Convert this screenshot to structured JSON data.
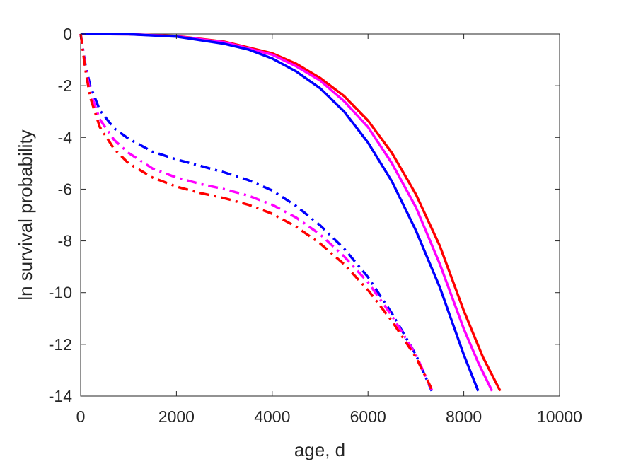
{
  "chart_data": {
    "type": "line",
    "title": "",
    "xlabel": "age, d",
    "ylabel": "ln survival probability",
    "xlim": [
      0,
      10000
    ],
    "ylim": [
      -14,
      0
    ],
    "xticks": [
      0,
      2000,
      4000,
      6000,
      8000,
      10000
    ],
    "yticks": [
      0,
      -2,
      -4,
      -6,
      -8,
      -10,
      -12,
      -14
    ],
    "xtick_labels": [
      "0",
      "2000",
      "4000",
      "6000",
      "8000",
      "10000"
    ],
    "ytick_labels": [
      "0",
      "-2",
      "-4",
      "-6",
      "-8",
      "-10",
      "-12",
      "-14"
    ],
    "grid": false,
    "legend": "none",
    "series": [
      {
        "color": "#ff0000",
        "style": "solid",
        "x": [
          0,
          1000,
          2000,
          3000,
          4000,
          4500,
          5000,
          5500,
          6000,
          6500,
          7000,
          7500,
          8000,
          8400,
          8760
        ],
        "y": [
          0,
          -0.01,
          -0.08,
          -0.3,
          -0.75,
          -1.15,
          -1.7,
          -2.4,
          -3.35,
          -4.6,
          -6.2,
          -8.2,
          -10.7,
          -12.5,
          -13.8
        ]
      },
      {
        "color": "#ff00ff",
        "style": "solid",
        "x": [
          0,
          1000,
          2000,
          3000,
          4000,
          4500,
          5000,
          5500,
          6000,
          6500,
          7000,
          7500,
          8000,
          8300,
          8590
        ],
        "y": [
          0,
          -0.01,
          -0.09,
          -0.32,
          -0.8,
          -1.25,
          -1.8,
          -2.6,
          -3.6,
          -5.0,
          -6.7,
          -8.9,
          -11.4,
          -12.7,
          -13.8
        ]
      },
      {
        "color": "#0000ff",
        "style": "solid",
        "x": [
          0,
          1000,
          2000,
          3000,
          3500,
          4000,
          4500,
          5000,
          5500,
          6000,
          6500,
          7000,
          7500,
          8000,
          8300
        ],
        "y": [
          0,
          -0.01,
          -0.1,
          -0.38,
          -0.6,
          -0.95,
          -1.45,
          -2.1,
          -3.0,
          -4.2,
          -5.7,
          -7.6,
          -9.8,
          -12.4,
          -13.8
        ]
      },
      {
        "color": "#0000ff",
        "style": "dashdot",
        "x": [
          0,
          100,
          200,
          400,
          700,
          1000,
          1500,
          2000,
          2500,
          3000,
          3500,
          4000,
          4500,
          5000,
          5500,
          6000,
          6500,
          7000,
          7330
        ],
        "y": [
          0,
          -1.2,
          -2.0,
          -2.95,
          -3.65,
          -4.05,
          -4.55,
          -4.85,
          -5.1,
          -5.35,
          -5.65,
          -6.05,
          -6.65,
          -7.4,
          -8.3,
          -9.4,
          -10.8,
          -12.4,
          -13.8
        ]
      },
      {
        "color": "#ff00ff",
        "style": "dashdot",
        "x": [
          0,
          100,
          200,
          400,
          700,
          1000,
          1500,
          2000,
          2500,
          3000,
          3500,
          4000,
          4500,
          5000,
          5500,
          6000,
          6500,
          7000,
          7340
        ],
        "y": [
          0,
          -1.3,
          -2.25,
          -3.3,
          -4.1,
          -4.6,
          -5.2,
          -5.55,
          -5.8,
          -6.0,
          -6.25,
          -6.6,
          -7.1,
          -7.75,
          -8.6,
          -9.6,
          -10.9,
          -12.4,
          -13.8
        ]
      },
      {
        "color": "#ff0000",
        "style": "dashdot",
        "x": [
          0,
          100,
          200,
          400,
          700,
          1000,
          1500,
          2000,
          2500,
          3000,
          3500,
          4000,
          4500,
          5000,
          5500,
          6000,
          6500,
          7000,
          7350
        ],
        "y": [
          0,
          -1.4,
          -2.45,
          -3.6,
          -4.45,
          -5.0,
          -5.55,
          -5.9,
          -6.15,
          -6.35,
          -6.6,
          -6.95,
          -7.45,
          -8.1,
          -8.9,
          -9.9,
          -11.1,
          -12.5,
          -13.8
        ]
      }
    ]
  }
}
